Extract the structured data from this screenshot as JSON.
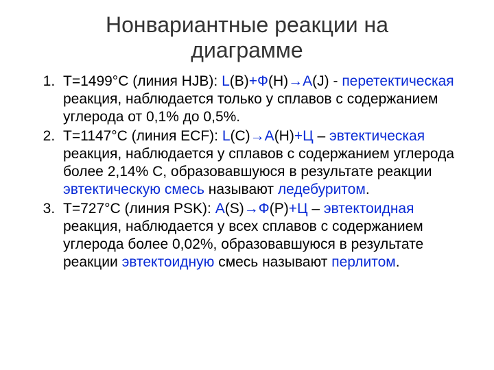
{
  "colors": {
    "background": "#ffffff",
    "text": "#000000",
    "title": "#333333",
    "highlight": "#0a2bd6"
  },
  "typography": {
    "font_family": "Arial",
    "title_fontsize": 32,
    "body_fontsize": 21
  },
  "title": {
    "line1": "Нонвариантные реакции на",
    "line2": "диаграмме"
  },
  "items": [
    {
      "pre": "T=1499°С (линия HJB): ",
      "f1": "L",
      "t1": "(B)",
      "f2": "+Ф",
      "t2": "(H)",
      "f3": "→А",
      "t3": "(J) - ",
      "f4": "перетектическая",
      "t4": " реакция, наблюдается только у сплавов с содержанием углерода от 0,1% до 0,5%."
    },
    {
      "pre": "Т=1147°С (линия ECF): ",
      "f1": "L",
      "t1": "(C)",
      "f2": "→А",
      "t2": "(H)",
      "f3": "+Ц",
      "t3": " – ",
      "f4": "эвтектическая",
      "t4": " реакция, наблюдается у сплавов с содержанием углерода более 2,14% С, образовавшуюся в результате реакции ",
      "f5": "эвтектическую смесь",
      "t5": " называют ",
      "f6": "ледебуритом",
      "t6": "."
    },
    {
      "pre": "Т=727°С (линия PSK): ",
      "f1": "А",
      "t1": "(S)",
      "f2": "→Ф",
      "t2": "(P)",
      "f3": "+Ц",
      "t3": " – ",
      "f4": "эвтектоидная",
      "t4": " реакция, наблюдается у всех сплавов с содержанием углерода более 0,02%, образовавшуюся в результате реакции ",
      "f5": "эвтектоидную",
      "t5": " смесь называют ",
      "f6": "перлитом",
      "t6": "."
    }
  ]
}
